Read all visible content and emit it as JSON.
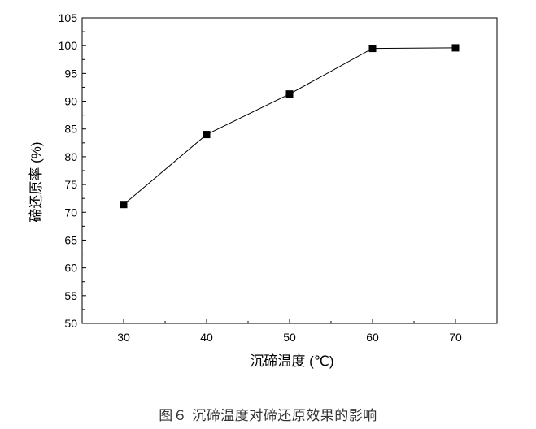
{
  "chart_data": {
    "type": "line",
    "x": [
      30,
      40,
      50,
      60,
      70
    ],
    "series": [
      {
        "values": [
          71.4,
          84.0,
          91.3,
          99.5,
          99.6
        ]
      }
    ],
    "xlabel": "沉碲温度 (℃)",
    "ylabel": "碲还原率 (%)",
    "xlim": [
      25,
      75
    ],
    "ylim": [
      50,
      105
    ],
    "xticks": [
      30,
      40,
      50,
      60,
      70
    ],
    "yticks": [
      50,
      55,
      60,
      65,
      70,
      75,
      80,
      85,
      90,
      95,
      100,
      105
    ],
    "marker": "square",
    "grid": false,
    "colors": {
      "line": "#000000",
      "marker": "#000000"
    }
  },
  "caption": "图６  沉碲温度对碲还原效果的影响"
}
